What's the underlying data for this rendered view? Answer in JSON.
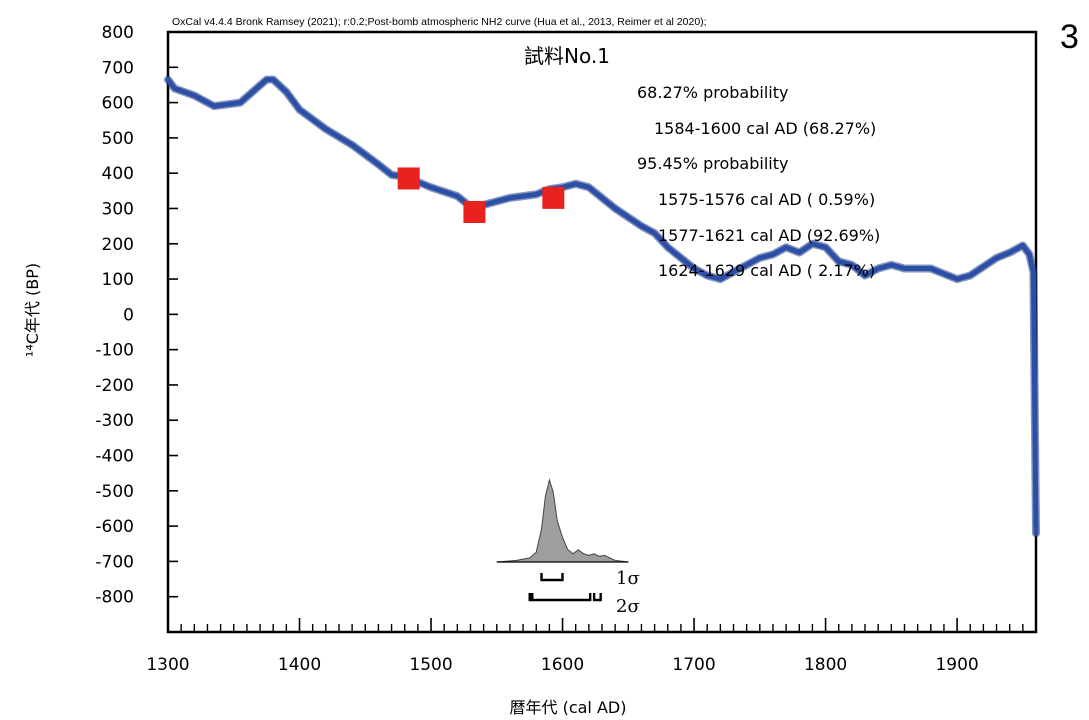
{
  "page_number": "3",
  "chart_data": {
    "type": "line",
    "header": "OxCal v4.4.4 Bronk Ramsey (2021); r:0.2;Post-bomb atmospheric NH2 curve (Hua et al., 2013, Reimer et al 2020);",
    "title": "試料No.1",
    "xlabel": "暦年代 (cal AD)",
    "ylabel": "¹⁴C年代 (BP)",
    "xlim": [
      1300,
      1960
    ],
    "ylim": [
      -900,
      800
    ],
    "xticks": [
      "1300",
      "1400",
      "1500",
      "1600",
      "1700",
      "1800",
      "1900"
    ],
    "yticks": [
      "800",
      "700",
      "600",
      "500",
      "400",
      "300",
      "200",
      "100",
      "0",
      "-100",
      "-200",
      "-300",
      "-400",
      "-500",
      "-600",
      "-700",
      "-800"
    ],
    "calibration_curve": {
      "x": [
        1300,
        1305,
        1320,
        1335,
        1355,
        1375,
        1380,
        1390,
        1400,
        1420,
        1440,
        1460,
        1470,
        1480,
        1500,
        1520,
        1530,
        1540,
        1560,
        1580,
        1590,
        1600,
        1610,
        1620,
        1640,
        1660,
        1670,
        1680,
        1690,
        1700,
        1710,
        1720,
        1730,
        1750,
        1760,
        1770,
        1780,
        1790,
        1800,
        1810,
        1820,
        1830,
        1840,
        1850,
        1860,
        1880,
        1890,
        1900,
        1910,
        1930,
        1940,
        1950,
        1955,
        1958,
        1960
      ],
      "y": [
        665,
        640,
        620,
        590,
        600,
        665,
        665,
        630,
        580,
        525,
        480,
        425,
        395,
        390,
        360,
        335,
        305,
        310,
        330,
        340,
        355,
        360,
        370,
        360,
        300,
        250,
        230,
        190,
        160,
        130,
        110,
        100,
        120,
        160,
        170,
        190,
        175,
        200,
        190,
        150,
        140,
        110,
        130,
        140,
        130,
        130,
        115,
        100,
        110,
        160,
        175,
        195,
        170,
        120,
        -620
      ]
    },
    "data_points": {
      "x": [
        1483,
        1533,
        1593
      ],
      "y": [
        385,
        290,
        330
      ],
      "color": "#e8231f"
    },
    "probability_text": [
      "68.27% probability",
      "1584-1600 cal AD (68.27%)",
      "95.45% probability",
      "1575-1576 cal AD ( 0.59%)",
      "1577-1621 cal AD (92.69%)",
      "1624-1629 cal AD ( 2.17%)"
    ],
    "distribution": {
      "x": [
        1550,
        1565,
        1575,
        1580,
        1584,
        1587,
        1590,
        1593,
        1596,
        1600,
        1604,
        1608,
        1612,
        1616,
        1620,
        1624,
        1628,
        1632,
        1636,
        1640,
        1650
      ],
      "density": [
        0,
        0.02,
        0.05,
        0.12,
        0.4,
        0.8,
        1.0,
        0.85,
        0.5,
        0.3,
        0.15,
        0.1,
        0.15,
        0.1,
        0.08,
        0.1,
        0.07,
        0.08,
        0.05,
        0.02,
        0
      ]
    },
    "ranges": {
      "sigma1_label": "1σ",
      "sigma2_label": "2σ",
      "sigma1": [
        [
          1584,
          1600
        ]
      ],
      "sigma2": [
        [
          1575,
          1576
        ],
        [
          1577,
          1621
        ],
        [
          1624,
          1629
        ]
      ]
    },
    "colors": {
      "curve": "#2b4fa6",
      "curve_edge": "#1f3b85",
      "points": "#e8231f",
      "distribution": "#9e9e9e"
    },
    "grid": false
  }
}
